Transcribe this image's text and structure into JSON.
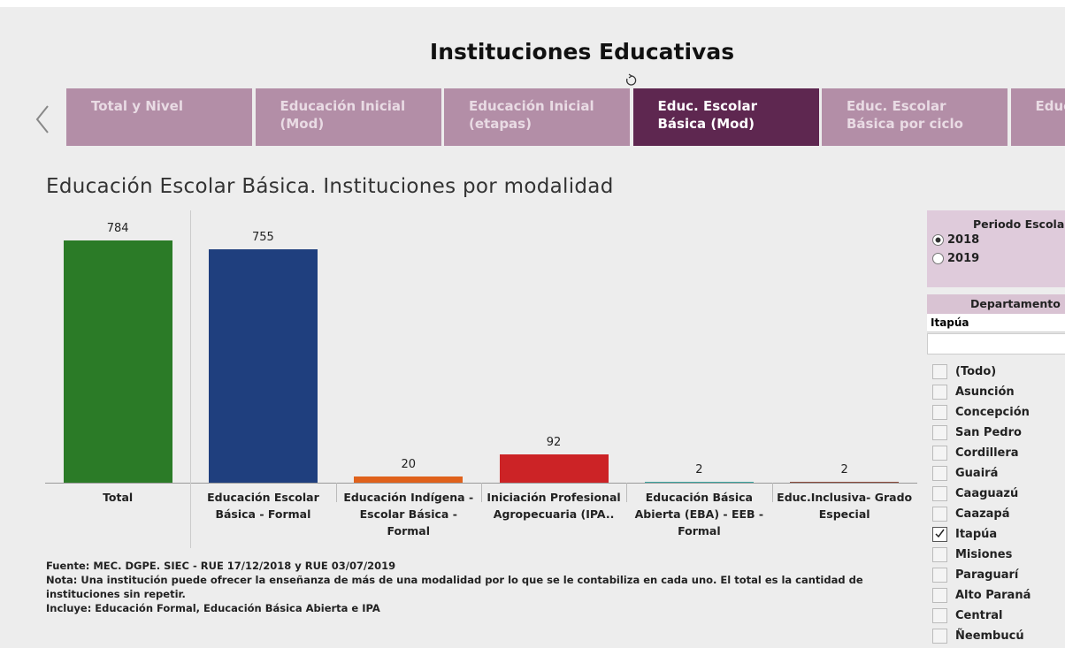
{
  "header": {
    "title": "Instituciones Educativas"
  },
  "tabs": [
    "Total y Nivel",
    "Educación Inicial\n(Mod)",
    "Educación Inicial\n(etapas)",
    "Educ. Escolar\nBásica  (Mod)",
    "Educ. Escolar\nBásica por ciclo",
    "Educ"
  ],
  "active_tab": 3,
  "chart_data": {
    "type": "bar",
    "title": "Educación Escolar Básica. Instituciones por modalidad",
    "categories": [
      "Total",
      "Educación Escolar Básica - Formal",
      "Educación Indígena - Escolar Básica - Formal",
      "Iniciación Profesional Agropecuaria (IPA..",
      "Educación Básica Abierta (EBA) - EEB - Formal",
      "Educ.Inclusiva- Grado Especial"
    ],
    "values": [
      784,
      755,
      20,
      92,
      2,
      2
    ],
    "colors": [
      "#2b7b27",
      "#1f3f7e",
      "#e0621c",
      "#cc2326",
      "#3aa5a0",
      "#8a4a3a"
    ],
    "ylim": [
      0,
      880
    ]
  },
  "notes": [
    "Fuente: MEC. DGPE. SIEC  - RUE 17/12/2018 y RUE 03/07/2019",
    "Nota: Una institución puede ofrecer la enseñanza de más de una modalidad por lo que se le contabiliza en cada uno. El total es la cantidad de instituciones sin repetir.",
    "Incluye: Educación Formal, Educación Básica Abierta e IPA"
  ],
  "periodo": {
    "title": "Periodo Escolar",
    "options": [
      "2018",
      "2019"
    ],
    "selected": 0
  },
  "departamento": {
    "title": "Departamento",
    "current": "Itapúa",
    "items": [
      "(Todo)",
      "Asunción",
      "Concepción",
      "San Pedro",
      "Cordillera",
      "Guairá",
      "Caaguazú",
      "Caazapá",
      "Itapúa",
      "Misiones",
      "Paraguarí",
      "Alto Paraná",
      "Central",
      "Ñeembucú"
    ],
    "checked": 8
  }
}
